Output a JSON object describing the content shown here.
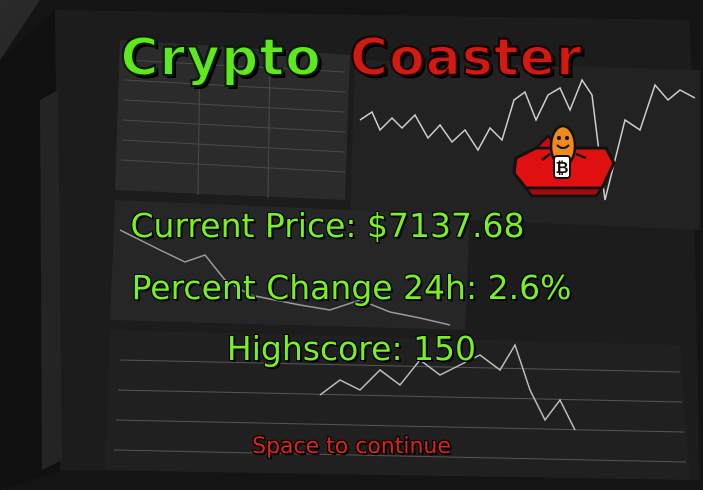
{
  "title": {
    "word1": "Crypto",
    "word2": "Coaster"
  },
  "stats": {
    "price_label": "Current Price:",
    "price_value": "$7137.68",
    "change_label": "Percent Change 24h:",
    "change_value": "2.6%",
    "highscore_label": "Highscore:",
    "highscore_value": "150"
  },
  "prompt": "Space to continue",
  "colors": {
    "title_green": "#5ee81e",
    "title_red": "#d31a12",
    "stat_green": "#78f21e",
    "prompt_red": "#e0221a"
  }
}
